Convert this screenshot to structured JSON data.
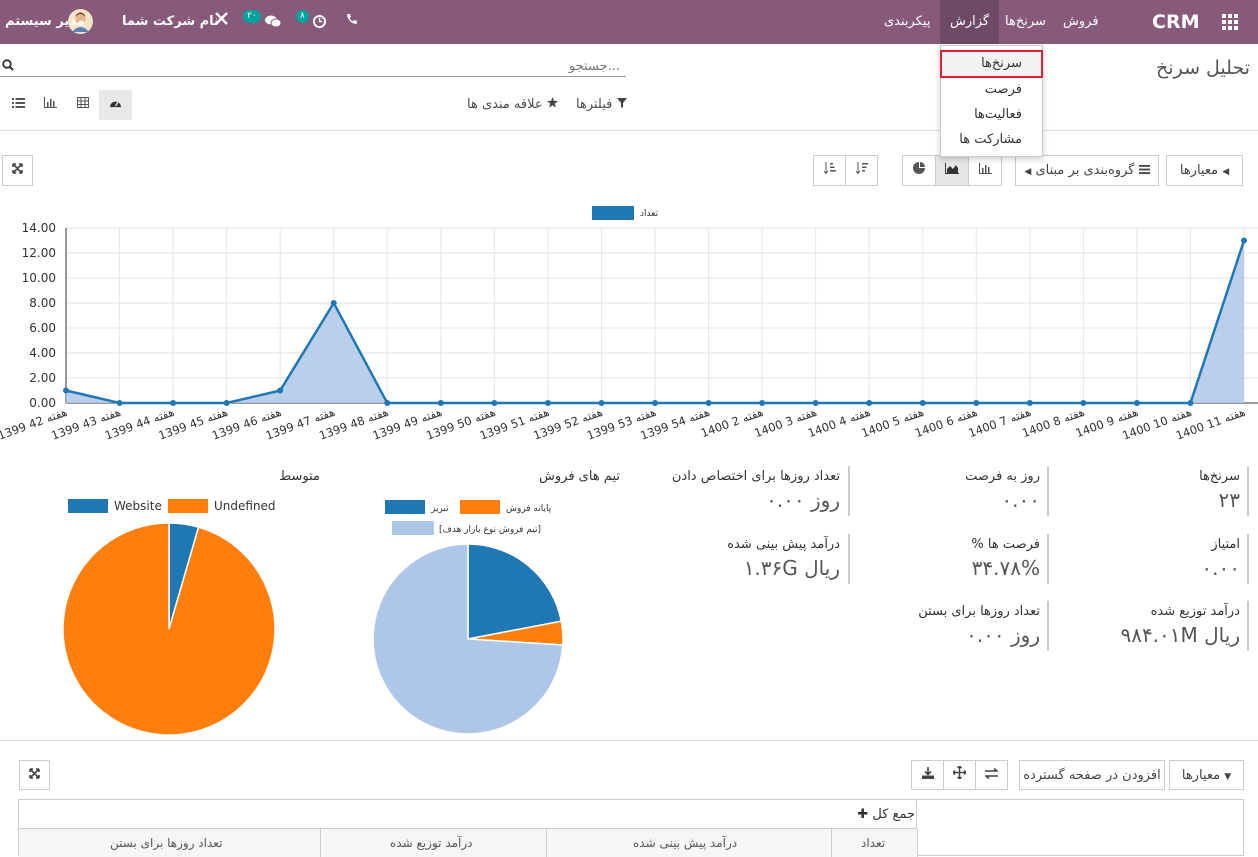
{
  "navbar": {
    "brand": "CRM",
    "menu": [
      "فروش",
      "سرنخ‌ها",
      "گزارش",
      "پیکربندی"
    ],
    "company": "نام شرکت شما",
    "user": "مدیر سیستم",
    "messages_count": "۲۰",
    "activities_count": "۸"
  },
  "dropdown": {
    "items": [
      "سرنخ‌ها",
      "فرصت",
      "فعالیت‌ها",
      "مشارکت ها"
    ]
  },
  "page": {
    "title": "تحلیل سرنخ"
  },
  "search": {
    "placeholder": "جستجو..."
  },
  "filters": {
    "filters_label": "فیلترها",
    "favorites_label": "علاقه مندی ها"
  },
  "toolbar": {
    "measures_label": "معیارها",
    "groupby_label": "گروه‌بندی بر مبنای"
  },
  "chart_data": [
    {
      "type": "line",
      "legend": [
        "تعداد"
      ],
      "x": [
        "هفته 42 1399",
        "هفته 43 1399",
        "هفته 44 1399",
        "هفته 45 1399",
        "هفته 46 1399",
        "هفته 47 1399",
        "هفته 48 1399",
        "هفته 49 1399",
        "هفته 50 1399",
        "هفته 51 1399",
        "هفته 52 1399",
        "هفته 53 1399",
        "هفته 54 1399",
        "هفته 2 1400",
        "هفته 3 1400",
        "هفته 4 1400",
        "هفته 5 1400",
        "هفته 6 1400",
        "هفته 7 1400",
        "هفته 8 1400",
        "هفته 9 1400",
        "هفته 10 1400",
        "هفته 11 1400"
      ],
      "series": [
        {
          "name": "تعداد",
          "values": [
            1,
            0,
            0,
            0,
            1,
            8,
            0,
            0,
            0,
            0,
            0,
            0,
            0,
            0,
            0,
            0,
            0,
            0,
            0,
            0,
            0,
            0,
            13
          ]
        }
      ],
      "yticks": [
        "0.00",
        "2.00",
        "4.00",
        "6.00",
        "8.00",
        "10.00",
        "12.00",
        "14.00"
      ],
      "ylim": [
        0,
        14
      ],
      "color": "#1f77b4",
      "fill": "#aec7e8",
      "area": true
    },
    {
      "type": "pie",
      "title": "تیم های فروش",
      "legend": [
        "تبریز",
        "پایانه فروش",
        "[تیم فروش نوع بازار هدف]"
      ],
      "values": [
        22,
        4,
        74
      ],
      "colors": [
        "#1f77b4",
        "#ff7f0e",
        "#aec7e8"
      ]
    },
    {
      "type": "pie",
      "title": "متوسط",
      "legend": [
        "Website",
        "Undefined"
      ],
      "values": [
        4.5,
        95.5
      ],
      "colors": [
        "#1f77b4",
        "#ff7f0e"
      ]
    }
  ],
  "kpis": [
    {
      "label": "سرنخ‌ها",
      "value": "۲۳"
    },
    {
      "label": "روز به فرصت",
      "value": "۰.۰۰"
    },
    {
      "label": "تعداد روزها برای اختصاص دادن",
      "value": "۰.۰۰ روز"
    },
    {
      "label": "امتیاز",
      "value": "۰.۰۰"
    },
    {
      "label": "% فرصت ها",
      "value": "۳۴.۷۸%"
    },
    {
      "label": "درآمد پیش بینی شده",
      "value": "۱.۳۶G ریال"
    },
    {
      "label": "درآمد توزیع شده",
      "value": "۹۸۴.۰۱M ریال"
    },
    {
      "label": "تعداد روزها برای بستن",
      "value": "۰.۰۰ روز"
    }
  ],
  "pivot": {
    "measures_label": "معیارها",
    "insert_label": "افزودن در صفحه گسترده",
    "total_label": "جمع کل",
    "columns": [
      "تعداد",
      "درآمد پیش بینی شده",
      "درآمد توزیع شده",
      "تعداد روزها برای بستن"
    ]
  }
}
